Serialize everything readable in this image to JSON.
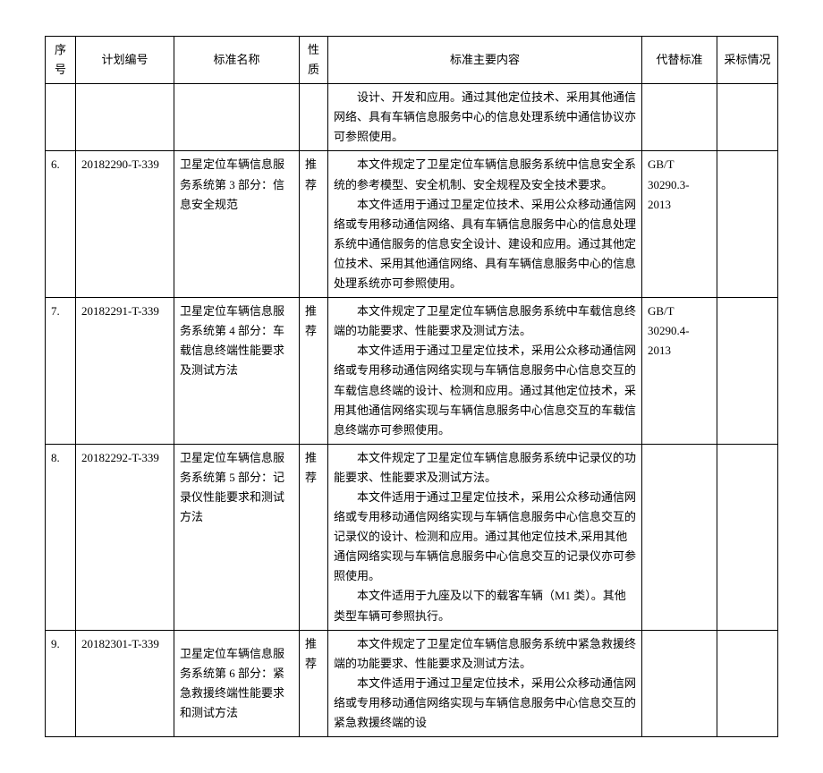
{
  "headers": {
    "seq": "序号",
    "plan": "计划编号",
    "name": "标准名称",
    "nature": "性质",
    "content": "标准主要内容",
    "replace": "代替标准",
    "adopt": "采标情况"
  },
  "rows": [
    {
      "seq": "",
      "plan": "",
      "name": "",
      "nature": "",
      "content_lines": [
        "设计、开发和应用。通过其他定位技术、采用其他通信网络、具有车辆信息服务中心的信息处理系统中通信协议亦可参照使用。"
      ],
      "replace": "",
      "adopt": ""
    },
    {
      "seq": "6.",
      "plan": "20182290-T-339",
      "name": "卫星定位车辆信息服务系统第 3 部分：信息安全规范",
      "nature": "推荐",
      "content_lines": [
        "本文件规定了卫星定位车辆信息服务系统中信息安全系统的参考模型、安全机制、安全规程及安全技术要求。",
        "本文件适用于通过卫星定位技术、采用公众移动通信网络或专用移动通信网络、具有车辆信息服务中心的信息处理系统中通信服务的信息安全设计、建设和应用。通过其他定位技术、采用其他通信网络、具有车辆信息服务中心的信息处理系统亦可参照使用。"
      ],
      "replace": "GB/T 30290.3-2013",
      "adopt": ""
    },
    {
      "seq": "7.",
      "plan": "20182291-T-339",
      "name": "卫星定位车辆信息服务系统第 4 部分：车载信息终端性能要求及测试方法",
      "nature": "推荐",
      "content_lines": [
        "本文件规定了卫星定位车辆信息服务系统中车载信息终端的功能要求、性能要求及测试方法。",
        "本文件适用于通过卫星定位技术，采用公众移动通信网络或专用移动通信网络实现与车辆信息服务中心信息交互的车载信息终端的设计、检测和应用。通过其他定位技术，采用其他通信网络实现与车辆信息服务中心信息交互的车载信息终端亦可参照使用。"
      ],
      "replace": "GB/T 30290.4-2013",
      "adopt": ""
    },
    {
      "seq": "8.",
      "plan": "20182292-T-339",
      "name": "卫星定位车辆信息服务系统第 5 部分：记录仪性能要求和测试方法",
      "nature": "推荐",
      "content_lines": [
        "本文件规定了卫星定位车辆信息服务系统中记录仪的功能要求、性能要求及测试方法。",
        "本文件适用于通过卫星定位技术，采用公众移动通信网络或专用移动通信网络实现与车辆信息服务中心信息交互的记录仪的设计、检测和应用。通过其他定位技术,采用其他通信网络实现与车辆信息服务中心信息交互的记录仪亦可参照使用。",
        "本文件适用于九座及以下的载客车辆（M1 类）。其他类型车辆可参照执行。"
      ],
      "replace": "",
      "adopt": ""
    },
    {
      "seq": "9.",
      "plan": "20182301-T-339",
      "name": "卫星定位车辆信息服务系统第 6 部分：紧急救援终端性能要求和测试方法",
      "nature": "推荐",
      "content_lines": [
        "本文件规定了卫星定位车辆信息服务系统中紧急救援终端的功能要求、性能要求及测试方法。",
        "本文件适用于通过卫星定位技术，采用公众移动通信网络或专用移动通信网络实现与车辆信息服务中心信息交互的紧急救援终端的设"
      ],
      "replace": "",
      "adopt": ""
    }
  ]
}
